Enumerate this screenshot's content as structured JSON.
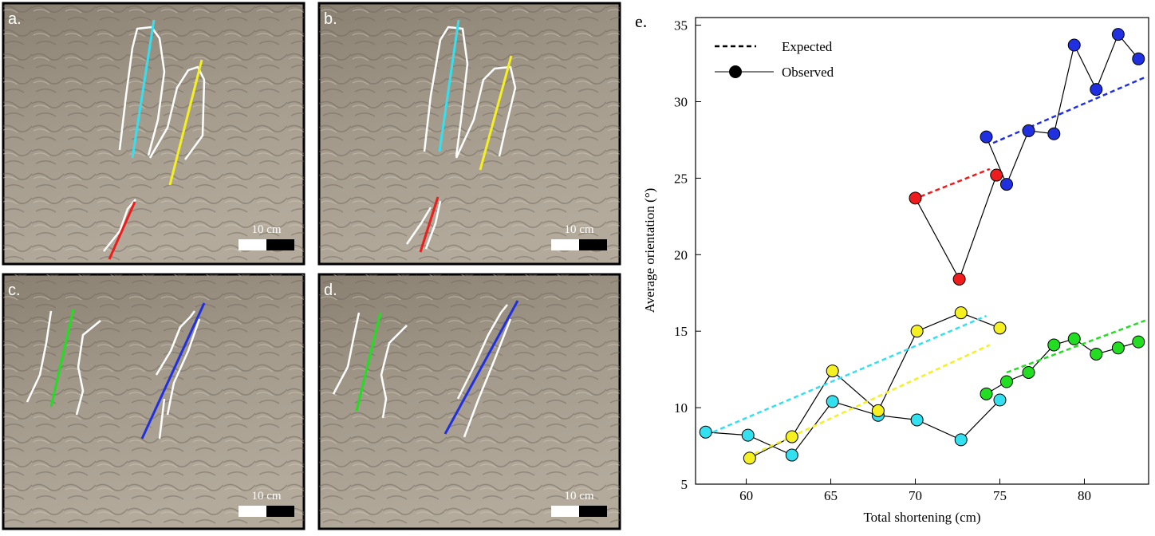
{
  "panels": [
    {
      "label": "a.",
      "scale": "10 cm"
    },
    {
      "label": "b.",
      "scale": "10 cm"
    },
    {
      "label": "c.",
      "scale": "10 cm"
    },
    {
      "label": "d.",
      "scale": "10 cm"
    }
  ],
  "chart_data": {
    "type": "line",
    "title": "e.",
    "xlabel": "Total shortening (cm)",
    "ylabel": "Average orientation (°)",
    "xlim": [
      57,
      83.8
    ],
    "ylim": [
      5,
      35.5
    ],
    "xticks": [
      60,
      65,
      70,
      75,
      80
    ],
    "yticks": [
      5,
      10,
      15,
      20,
      25,
      30,
      35
    ],
    "legend": [
      {
        "label": "Expected",
        "style": "dashed"
      },
      {
        "label": "Observed",
        "style": "marker"
      }
    ],
    "series": [
      {
        "color": "#33e0f0",
        "x": [
          57.6,
          60.1,
          62.7,
          65.1,
          67.8,
          70.1,
          72.7,
          75.0
        ],
        "values": [
          8.4,
          8.2,
          6.9,
          10.4,
          9.5,
          9.2,
          7.9,
          10.5
        ],
        "expected": {
          "x": [
            57.6,
            74.2
          ],
          "values": [
            8.2,
            16.0
          ]
        }
      },
      {
        "color": "#f5f020",
        "x": [
          60.2,
          62.7,
          65.1,
          67.8,
          70.1,
          72.7,
          75.0
        ],
        "values": [
          6.7,
          8.1,
          12.4,
          9.8,
          15.0,
          16.2,
          15.2
        ],
        "expected": {
          "x": [
            60.5,
            74.4
          ],
          "values": [
            7.0,
            14.1
          ]
        }
      },
      {
        "color": "#ee1c1c",
        "x": [
          70.0,
          72.6,
          74.8
        ],
        "values": [
          23.7,
          18.4,
          25.2
        ],
        "expected": {
          "x": [
            70.3,
            74.4
          ],
          "values": [
            23.8,
            25.6
          ]
        }
      },
      {
        "color": "#2030e0",
        "x": [
          74.2,
          75.4,
          76.7,
          78.2,
          79.4,
          80.7,
          82.0,
          83.2
        ],
        "values": [
          27.7,
          24.6,
          28.1,
          27.9,
          33.7,
          30.8,
          34.4,
          32.8
        ],
        "expected": {
          "x": [
            74.6,
            83.6
          ],
          "values": [
            27.3,
            31.6
          ]
        }
      },
      {
        "color": "#22dd22",
        "x": [
          74.2,
          75.4,
          76.7,
          78.2,
          79.4,
          80.7,
          82.0,
          83.2
        ],
        "values": [
          10.9,
          11.7,
          12.3,
          14.1,
          14.5,
          13.5,
          13.9,
          14.3
        ],
        "expected": {
          "x": [
            75.4,
            83.6
          ],
          "values": [
            12.3,
            15.7
          ]
        }
      }
    ]
  }
}
